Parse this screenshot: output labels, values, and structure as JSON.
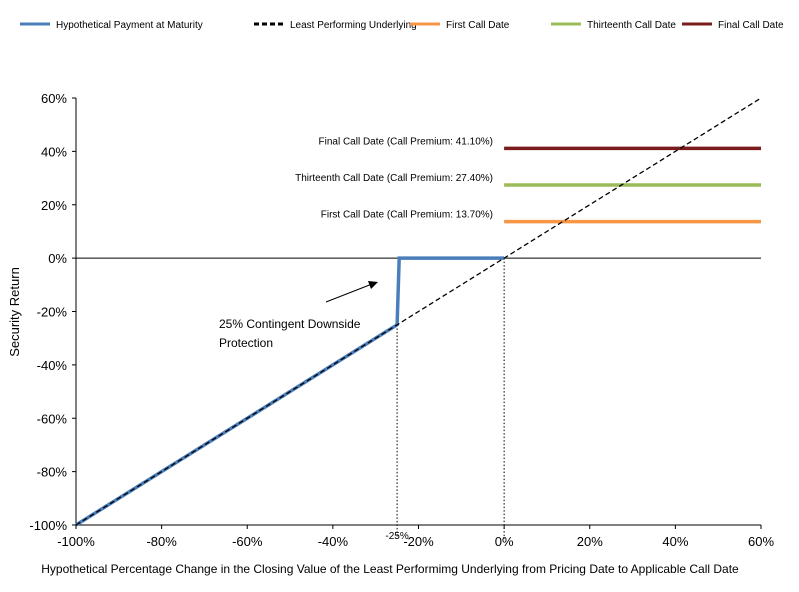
{
  "chart_data": {
    "type": "line",
    "xlabel": "Hypothetical Percentage Change in the Closing Value of the Least Performimg Underlying from Pricing Date to Applicable Call Date",
    "ylabel": "Security Return",
    "xlim": [
      -100,
      60
    ],
    "ylim": [
      -100,
      60
    ],
    "x_ticks": [
      "-100%",
      "-80%",
      "-60%",
      "-40%",
      "-20%",
      "0%",
      "20%",
      "40%",
      "60%"
    ],
    "y_ticks": [
      "60%",
      "40%",
      "20%",
      "0%",
      "-20%",
      "-40%",
      "-60%",
      "-80%",
      "-100%"
    ],
    "legend_position": "top",
    "series": [
      {
        "name": "Hypothetical Payment at Maturity",
        "color": "#4a7ebb",
        "style": "solid",
        "x": [
          -100,
          -25,
          -24.5,
          0
        ],
        "y": [
          -100,
          -25,
          0,
          0
        ]
      },
      {
        "name": "Least Performing Underlying",
        "color": "#000000",
        "style": "dashed",
        "x": [
          -100,
          60
        ],
        "y": [
          -100,
          60
        ]
      },
      {
        "name": "First Call Date",
        "color": "#f79646",
        "style": "solid",
        "x": [
          0,
          60
        ],
        "y": [
          13.7,
          13.7
        ]
      },
      {
        "name": "Thirteenth Call Date",
        "color": "#9bbb59",
        "style": "solid",
        "x": [
          0,
          60
        ],
        "y": [
          27.4,
          27.4
        ]
      },
      {
        "name": "Final Call Date",
        "color": "#7b1c1c",
        "style": "solid",
        "x": [
          0,
          60
        ],
        "y": [
          41.1,
          41.1
        ]
      }
    ],
    "call_labels": [
      {
        "text": "Final Call Date (Call Premium: 41.10%)",
        "y": 41.1
      },
      {
        "text": "Thirteenth  Call Date (Call Premium: 27.40%)",
        "y": 27.4
      },
      {
        "text": "First Call Date (Call Premium: 13.70%)",
        "y": 13.7
      }
    ],
    "annotation": {
      "lines": [
        "25% Contingent Downside",
        "Protection"
      ]
    },
    "marker_label": "-25%",
    "reference_lines_x": [
      -25,
      0
    ]
  }
}
